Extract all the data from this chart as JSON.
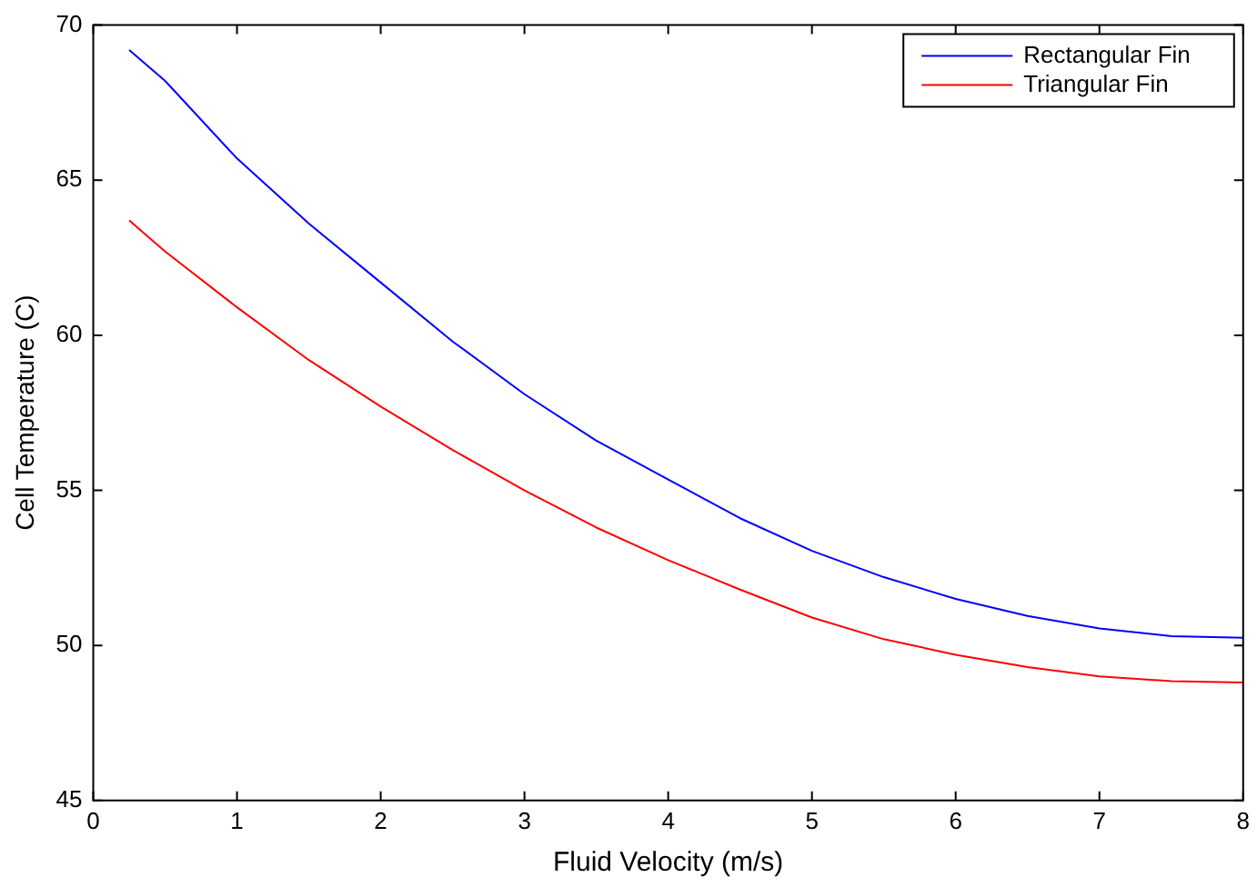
{
  "chart_data": {
    "type": "line",
    "xlabel": "Fluid Velocity (m/s)",
    "ylabel": "Cell Temperature (C)",
    "x": [
      0.25,
      0.5,
      1,
      1.5,
      2,
      2.5,
      3,
      3.5,
      4,
      4.5,
      5,
      5.5,
      6,
      6.5,
      7,
      7.5,
      8
    ],
    "series": [
      {
        "name": "Rectangular Fin",
        "color": "#0000ff",
        "values": [
          69.2,
          68.2,
          65.7,
          63.6,
          61.7,
          59.8,
          58.1,
          56.6,
          55.35,
          54.1,
          53.05,
          52.2,
          51.5,
          50.95,
          50.55,
          50.3,
          50.25
        ]
      },
      {
        "name": "Triangular Fin",
        "color": "#ff0000",
        "values": [
          63.7,
          62.7,
          60.9,
          59.2,
          57.7,
          56.3,
          55.0,
          53.8,
          52.75,
          51.8,
          50.9,
          50.2,
          49.7,
          49.3,
          49.0,
          48.85,
          48.8
        ]
      }
    ],
    "xlim": [
      0,
      8
    ],
    "xticks": [
      0,
      1,
      2,
      3,
      4,
      5,
      6,
      7,
      8
    ],
    "ylim": [
      45,
      70
    ],
    "yticks": [
      45,
      50,
      55,
      60,
      65,
      70
    ],
    "grid": false,
    "legend": "top right",
    "marker": "none",
    "line_style": "solid"
  }
}
